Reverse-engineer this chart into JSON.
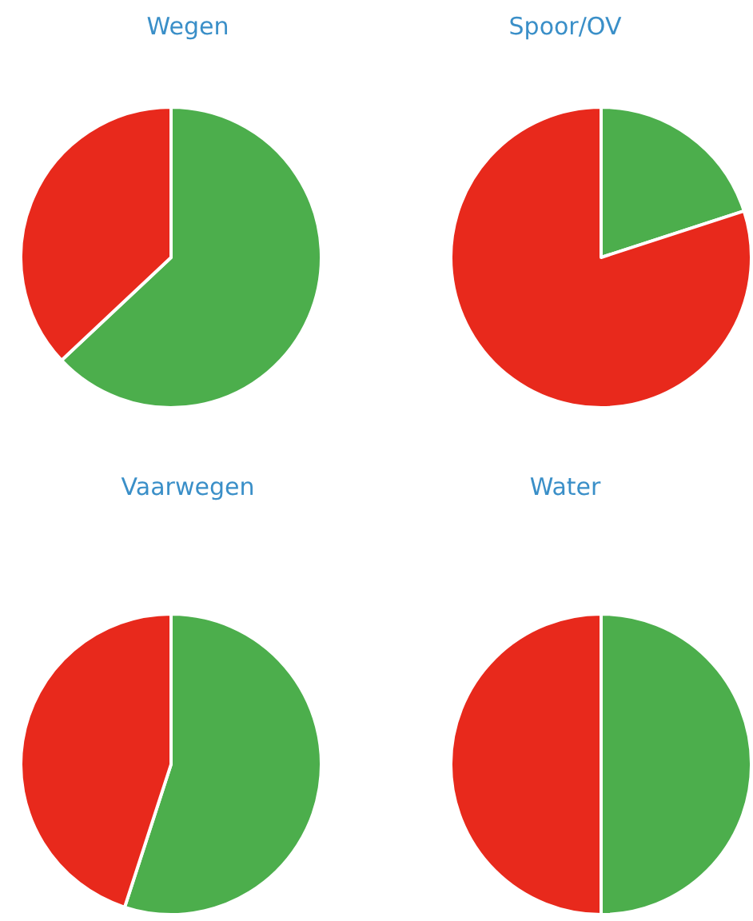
{
  "chart_data": [
    {
      "type": "pie",
      "title": "Wegen",
      "categories": [
        null,
        null
      ],
      "values": [
        63,
        37
      ],
      "colors": [
        "#4cae4c",
        "#e8291c"
      ]
    },
    {
      "type": "pie",
      "title": "Spoor/OV",
      "categories": [
        null,
        null
      ],
      "values": [
        20,
        80
      ],
      "colors": [
        "#4cae4c",
        "#e8291c"
      ]
    },
    {
      "type": "pie",
      "title": "Vaarwegen",
      "categories": [
        null,
        null
      ],
      "values": [
        55,
        45
      ],
      "colors": [
        "#4cae4c",
        "#e8291c"
      ]
    },
    {
      "type": "pie",
      "title": "Water",
      "categories": [
        null,
        null
      ],
      "values": [
        50,
        50
      ],
      "colors": [
        "#4cae4c",
        "#e8291c"
      ]
    }
  ]
}
